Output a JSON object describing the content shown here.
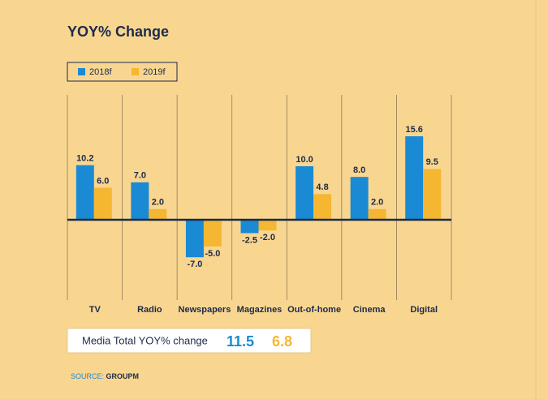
{
  "chart_data": {
    "type": "bar",
    "title": "YOY% Change",
    "categories": [
      "TV",
      "Radio",
      "Newspapers",
      "Magazines",
      "Out-of-home",
      "Cinema",
      "Digital"
    ],
    "series": [
      {
        "name": "2018f",
        "color": "#1a8ad4",
        "values": [
          10.2,
          7,
          -7,
          -2.5,
          10,
          8,
          15.6
        ],
        "value_labels": [
          "10.2",
          "7.0",
          "-7.0",
          "-2.5",
          "10.0",
          "8.0",
          "15.6"
        ]
      },
      {
        "name": "2019f",
        "color": "#f5b731",
        "values": [
          6,
          2,
          -5,
          -2,
          4.8,
          2,
          9.5
        ],
        "value_labels": [
          "6.0",
          "2.0",
          "-5.0",
          "-2.0",
          "4.8",
          "2.0",
          "9.5"
        ]
      }
    ],
    "legend": "top-left"
  },
  "summary": {
    "label": "Media Total YOY% change",
    "values": [
      11.5,
      6.8
    ],
    "value_labels": [
      "11.5",
      "6.8"
    ]
  },
  "source": {
    "label": "SOURCE:",
    "name": "GROUPM"
  }
}
